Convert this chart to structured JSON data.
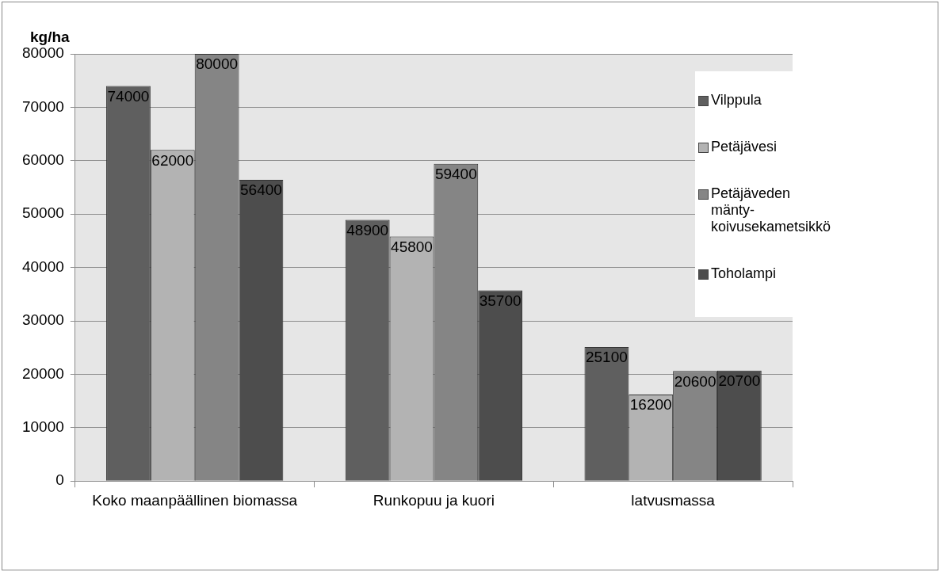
{
  "chart_data": {
    "type": "bar",
    "ylabel": "kg/ha",
    "categories": [
      "Koko maanpäällinen biomassa",
      "Runkopuu ja kuori",
      "latvusmassa"
    ],
    "series": [
      {
        "name": "Vilppula",
        "color": "#5f5f5f",
        "values": [
          74000,
          48900,
          25100
        ]
      },
      {
        "name": "Petäjävesi",
        "color": "#b3b3b3",
        "values": [
          62000,
          45800,
          16200
        ]
      },
      {
        "name": "Petäjäveden mänty-koivusekametsikkö",
        "color": "#858585",
        "values": [
          80000,
          59400,
          20600
        ]
      },
      {
        "name": "Toholampi",
        "color": "#4d4d4d",
        "values": [
          56400,
          35700,
          20700
        ]
      }
    ],
    "ylim": [
      0,
      80000
    ],
    "yticks": [
      0,
      10000,
      20000,
      30000,
      40000,
      50000,
      60000,
      70000,
      80000
    ],
    "grid": "y",
    "legend": "right",
    "data_labels": true
  }
}
